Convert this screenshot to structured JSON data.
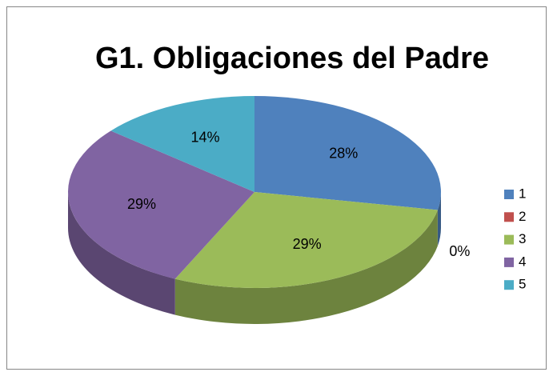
{
  "chart_data": {
    "type": "pie",
    "title": "G1. Obligaciones del Padre",
    "categories": [
      "1",
      "2",
      "3",
      "4",
      "5"
    ],
    "values": [
      28,
      0,
      29,
      29,
      14
    ],
    "value_labels": [
      "28%",
      "0%",
      "29%",
      "29%",
      "14%"
    ],
    "colors": [
      "#4f81bd",
      "#c0504d",
      "#9bbb59",
      "#8064a2",
      "#4bacc6"
    ],
    "legend": "right"
  }
}
